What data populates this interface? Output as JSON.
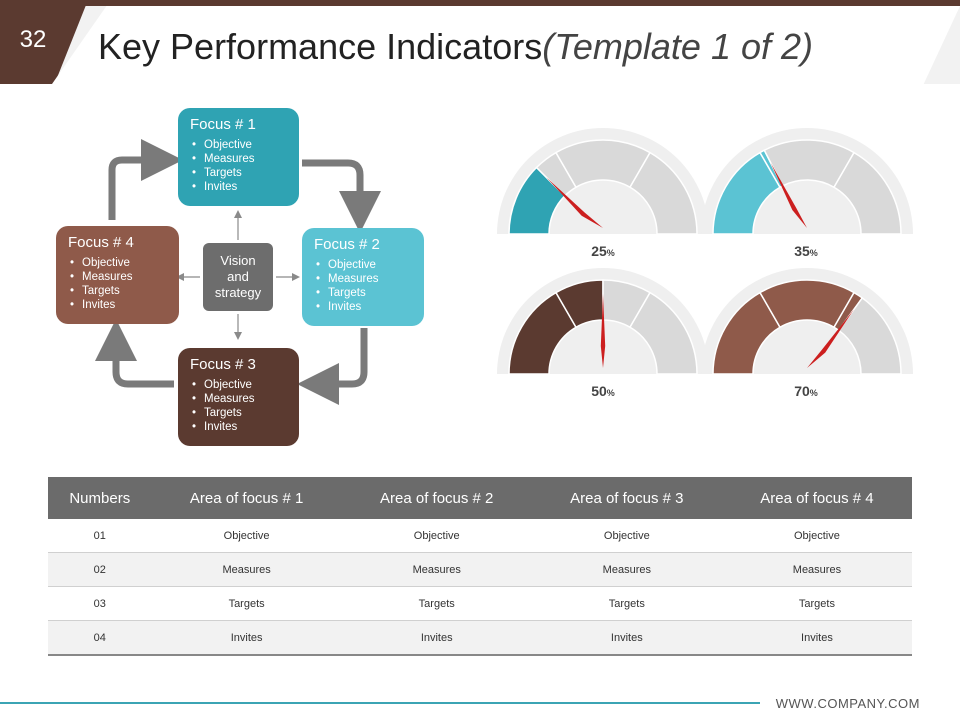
{
  "slide": {
    "number": "32",
    "title": "Key Performance Indicators",
    "title_suffix": "(Template 1 of 2)"
  },
  "colors": {
    "brown_dark": "#5b3a30",
    "teal_dark": "#2fa3b3",
    "teal_light": "#5bc3d3",
    "brown_mid": "#8f5a4a",
    "needle": "#cc1f1f"
  },
  "cycle": {
    "focus1": {
      "title": "Focus # 1",
      "items": [
        "Objective",
        "Measures",
        "Targets",
        "Invites"
      ]
    },
    "focus2": {
      "title": "Focus # 2",
      "items": [
        "Objective",
        "Measures",
        "Targets",
        "Invites"
      ]
    },
    "focus3": {
      "title": "Focus # 3",
      "items": [
        "Objective",
        "Measures",
        "Targets",
        "Invites"
      ]
    },
    "focus4": {
      "title": "Focus # 4",
      "items": [
        "Objective",
        "Measures",
        "Targets",
        "Invites"
      ]
    },
    "center": "Vision and strategy"
  },
  "gauges": [
    {
      "value": 25,
      "number": "25",
      "unit": "%",
      "color": "#2fa3b3"
    },
    {
      "value": 35,
      "number": "35",
      "unit": "%",
      "color": "#5bc3d3"
    },
    {
      "value": 50,
      "number": "50",
      "unit": "%",
      "color": "#5b3a30"
    },
    {
      "value": 70,
      "number": "70",
      "unit": "%",
      "color": "#8f5a4a"
    }
  ],
  "table": {
    "headers": [
      "Numbers",
      "Area of focus # 1",
      "Area of focus # 2",
      "Area of focus # 3",
      "Area of focus # 4"
    ],
    "rows": [
      [
        "01",
        "Objective",
        "Objective",
        "Objective",
        "Objective"
      ],
      [
        "02",
        "Measures",
        "Measures",
        "Measures",
        "Measures"
      ],
      [
        "03",
        "Targets",
        "Targets",
        "Targets",
        "Targets"
      ],
      [
        "04",
        "Invites",
        "Invites",
        "Invites",
        "Invites"
      ]
    ]
  },
  "footer": {
    "website": "WWW.COMPANY.COM"
  }
}
